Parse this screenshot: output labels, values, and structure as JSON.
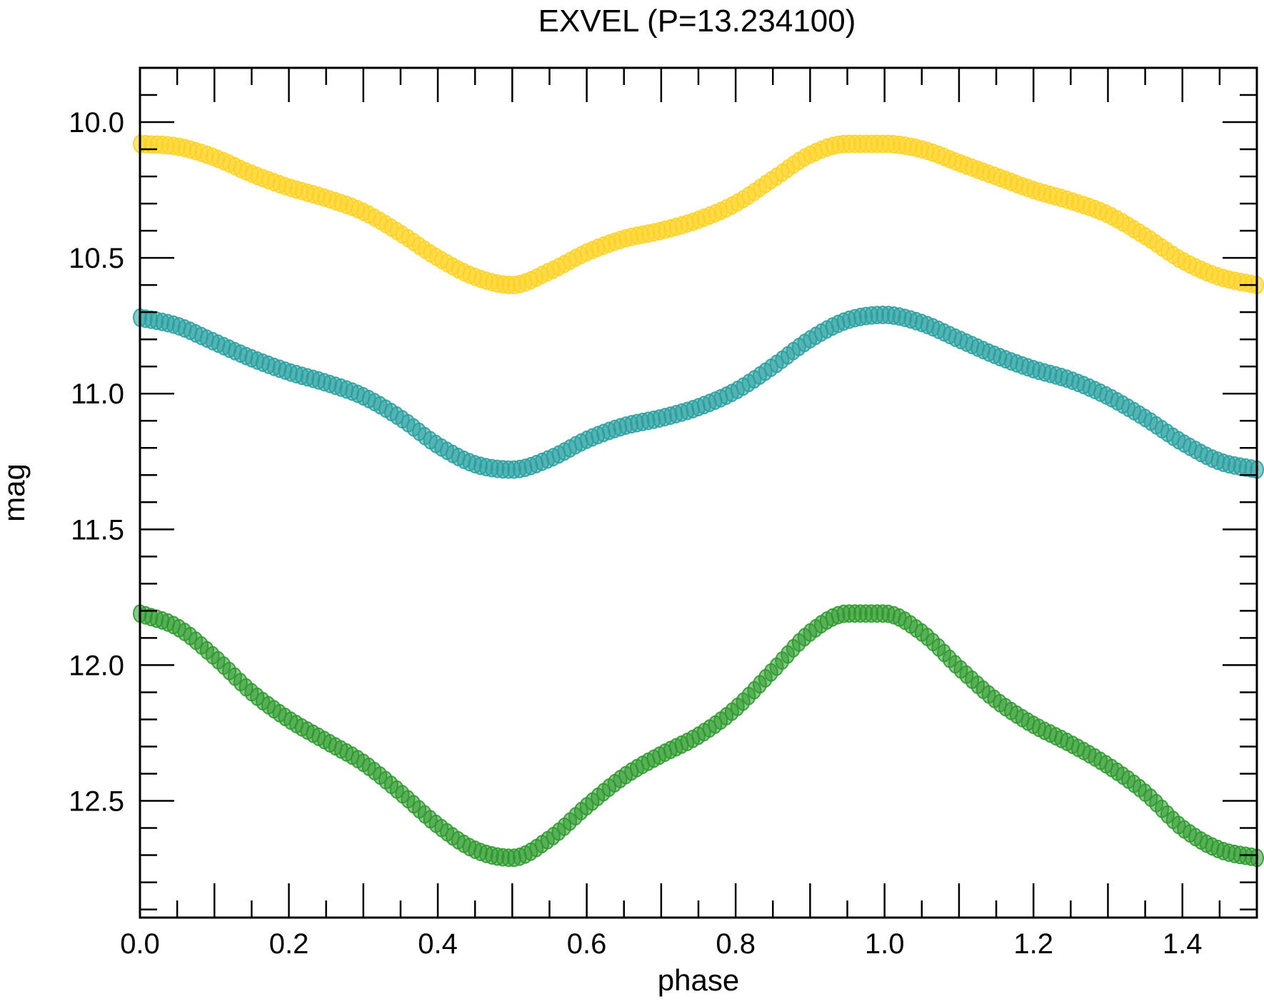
{
  "chart_data": {
    "type": "scatter",
    "title": "EXVEL (P=13.234100)",
    "xlabel": "phase",
    "ylabel": "mag",
    "xlim": [
      0.0,
      1.5
    ],
    "ylim": [
      12.93,
      9.8
    ],
    "y_inverted": true,
    "grid": false,
    "x_ticks": [
      "0.0",
      "0.2",
      "0.4",
      "0.6",
      "0.8",
      "1.0",
      "1.2",
      "1.4"
    ],
    "y_ticks": [
      "10.0",
      "10.5",
      "11.0",
      "11.5",
      "12.0",
      "12.5"
    ],
    "series": [
      {
        "color": "#ffd21f",
        "x": [
          0.0,
          0.05,
          0.1,
          0.15,
          0.2,
          0.25,
          0.3,
          0.35,
          0.4,
          0.45,
          0.5,
          0.55,
          0.6,
          0.65,
          0.7,
          0.75,
          0.8,
          0.85,
          0.9,
          0.95,
          1.0,
          1.05,
          1.1,
          1.15,
          1.2,
          1.25,
          1.3,
          1.35,
          1.4,
          1.45,
          1.5
        ],
        "y": [
          10.08,
          10.09,
          10.13,
          10.19,
          10.24,
          10.28,
          10.33,
          10.41,
          10.5,
          10.57,
          10.6,
          10.55,
          10.48,
          10.43,
          10.4,
          10.36,
          10.3,
          10.21,
          10.12,
          10.08,
          10.08,
          10.1,
          10.15,
          10.2,
          10.25,
          10.29,
          10.34,
          10.42,
          10.51,
          10.57,
          10.6
        ]
      },
      {
        "color": "#2aa0a0",
        "x": [
          0.0,
          0.05,
          0.1,
          0.15,
          0.2,
          0.25,
          0.3,
          0.35,
          0.4,
          0.45,
          0.5,
          0.55,
          0.6,
          0.65,
          0.7,
          0.75,
          0.8,
          0.85,
          0.9,
          0.95,
          1.0,
          1.05,
          1.1,
          1.15,
          1.2,
          1.25,
          1.3,
          1.35,
          1.4,
          1.45,
          1.5
        ],
        "y": [
          10.72,
          10.75,
          10.81,
          10.87,
          10.92,
          10.96,
          11.01,
          11.09,
          11.19,
          11.26,
          11.28,
          11.24,
          11.17,
          11.12,
          11.09,
          11.05,
          10.99,
          10.9,
          10.8,
          10.73,
          10.71,
          10.74,
          10.8,
          10.86,
          10.91,
          10.95,
          11.01,
          11.09,
          11.18,
          11.25,
          11.28
        ]
      },
      {
        "color": "#2e9a2e",
        "x": [
          0.0,
          0.05,
          0.1,
          0.15,
          0.2,
          0.25,
          0.3,
          0.35,
          0.4,
          0.45,
          0.5,
          0.55,
          0.6,
          0.65,
          0.7,
          0.75,
          0.8,
          0.85,
          0.9,
          0.95,
          1.0,
          1.05,
          1.1,
          1.15,
          1.2,
          1.25,
          1.3,
          1.35,
          1.4,
          1.45,
          1.5
        ],
        "y": [
          11.81,
          11.86,
          11.97,
          12.1,
          12.2,
          12.28,
          12.36,
          12.47,
          12.59,
          12.68,
          12.71,
          12.64,
          12.52,
          12.41,
          12.33,
          12.26,
          12.16,
          12.02,
          11.88,
          11.81,
          11.81,
          11.88,
          12.01,
          12.13,
          12.22,
          12.29,
          12.37,
          12.47,
          12.6,
          12.68,
          12.71
        ]
      }
    ]
  }
}
